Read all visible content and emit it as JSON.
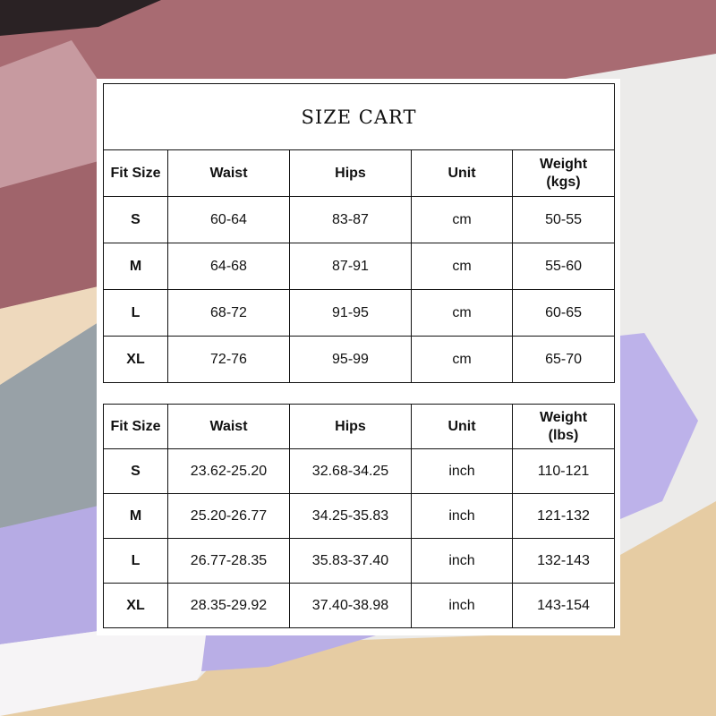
{
  "title": "SIZE CART",
  "colors": {
    "mauve": "#a86b72",
    "pink": "#c79aa0",
    "beige": "#e8d3b3",
    "grey": "#97a0a6",
    "lavender": "#b9aee6",
    "tan": "#e3c79a"
  },
  "metric_table": {
    "headers": [
      "Fit Size",
      "Waist",
      "Hips",
      "Unit",
      "Weight\n(kgs)"
    ],
    "header_weight_line1": "Weight",
    "header_weight_line2": "(kgs)",
    "rows": [
      [
        "S",
        "60-64",
        "83-87",
        "cm",
        "50-55"
      ],
      [
        "M",
        "64-68",
        "87-91",
        "cm",
        "55-60"
      ],
      [
        "L",
        "68-72",
        "91-95",
        "cm",
        "60-65"
      ],
      [
        "XL",
        "72-76",
        "95-99",
        "cm",
        "65-70"
      ]
    ]
  },
  "imperial_table": {
    "headers": [
      "Fit Size",
      "Waist",
      "Hips",
      "Unit",
      "Weight\n(lbs)"
    ],
    "header_weight_line1": "Weight",
    "header_weight_line2": "(lbs)",
    "rows": [
      [
        "S",
        "23.62-25.20",
        "32.68-34.25",
        "inch",
        "110-121"
      ],
      [
        "M",
        "25.20-26.77",
        "34.25-35.83",
        "inch",
        "121-132"
      ],
      [
        "L",
        "26.77-28.35",
        "35.83-37.40",
        "inch",
        "132-143"
      ],
      [
        "XL",
        "28.35-29.92",
        "37.40-38.98",
        "inch",
        "143-154"
      ]
    ]
  }
}
